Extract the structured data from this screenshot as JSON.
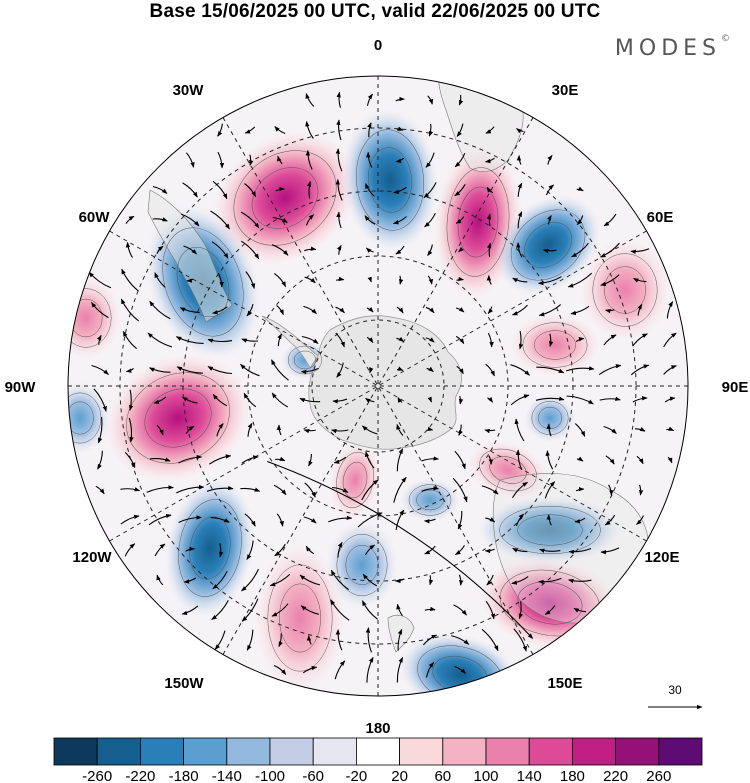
{
  "title": "Base 15/06/2025 00 UTC, valid 22/06/2025 00 UTC",
  "brand": "MODES",
  "brand_mark": "©",
  "map": {
    "projection": "south-polar-stereographic",
    "longitude_labels": {
      "top": "0",
      "top_right": "30E",
      "right_upper": "60E",
      "right": "90E",
      "right_lower": "120E",
      "bottom_right": "150E",
      "bottom": "180",
      "bottom_left": "150W",
      "left_lower": "120W",
      "left": "90W",
      "left_upper": "60W",
      "top_left": "30W"
    },
    "reference_vector_label": "30"
  },
  "colorbar": {
    "levels": [
      "-260",
      "-220",
      "-180",
      "-140",
      "-100",
      "-60",
      "-20",
      "20",
      "60",
      "100",
      "140",
      "180",
      "220",
      "260"
    ],
    "colors": [
      "#0d3a5c",
      "#165e8e",
      "#2a7fb8",
      "#5b9fd0",
      "#93b9df",
      "#c4cde5",
      "#e6e6f1",
      "#ffffff",
      "#f9d9dc",
      "#f3b3c3",
      "#ea80ac",
      "#dd4b98",
      "#c01f85",
      "#941277",
      "#5e0b73"
    ]
  }
}
